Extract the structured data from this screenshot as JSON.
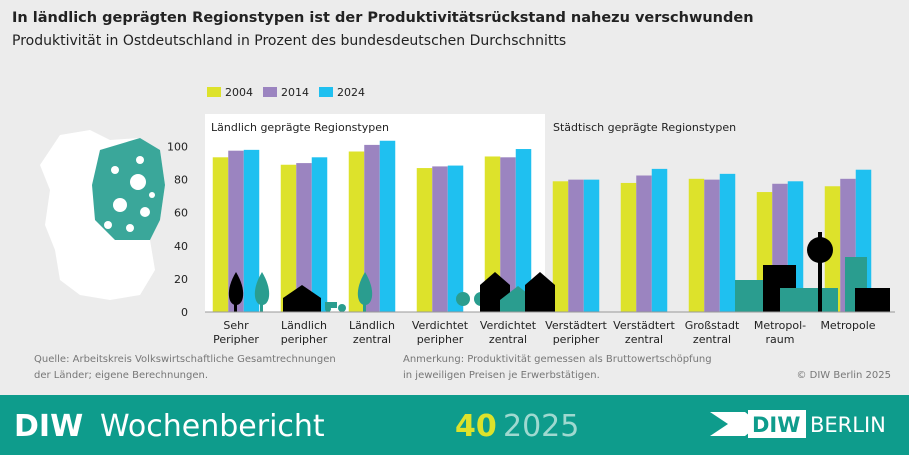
{
  "chart_data": {
    "type": "bar",
    "title": "In ländlich geprägten Regionstypen ist der Produktivitätsrückstand nahezu verschwunden",
    "subtitle": "Produktivität in Ostdeutschland in Prozent des bundesdeutschen Durchschnitts",
    "region_labels": [
      "Ländlich geprägte Regionstypen",
      "Städtisch geprägte Regionstypen"
    ],
    "categories": [
      [
        "Sehr",
        "Peripher"
      ],
      [
        "Ländlich",
        "peripher"
      ],
      [
        "Ländlich",
        "zentral"
      ],
      [
        "Verdichtet",
        "peripher"
      ],
      [
        "Verdichtet",
        "zentral"
      ],
      [
        "Verstädtert",
        "peripher"
      ],
      [
        "Verstädtert",
        "zentral"
      ],
      [
        "Großstadt",
        "zentral"
      ],
      [
        "Metropol-",
        "raum"
      ],
      [
        "Metropole"
      ]
    ],
    "series": [
      {
        "name": "2004",
        "color": "#dde22b",
        "values": [
          93.5,
          89,
          97,
          87,
          94,
          79,
          78,
          80.5,
          72.5,
          76
        ]
      },
      {
        "name": "2014",
        "color": "#9b84c0",
        "values": [
          97.5,
          90,
          101,
          88,
          93.5,
          80,
          82.5,
          80,
          77.5,
          80.5
        ]
      },
      {
        "name": "2024",
        "color": "#1fc0f0",
        "values": [
          98,
          93.5,
          103.5,
          88.5,
          98.5,
          80,
          86.5,
          83.5,
          79,
          86
        ]
      }
    ],
    "ylim": [
      0,
      110
    ],
    "yticks": [
      0,
      20,
      40,
      60,
      80,
      100
    ],
    "grid": false,
    "source": [
      "Quelle: Arbeitskreis Volkswirtschaftliche Gesamtrechnungen",
      "der Länder; eigene Berechnungen."
    ],
    "note": [
      "Anmerkung: Produktivität gemessen als Bruttowertschöpfung",
      "in jeweiligen Preisen je Erwerbstätigen."
    ],
    "copyright": "© DIW Berlin 2025"
  },
  "banner": {
    "publication": "DIW",
    "publication_name": "Wochenbericht",
    "issue": "40",
    "year": "2025",
    "logo_left": "DIW",
    "logo_right": "BERLIN"
  }
}
